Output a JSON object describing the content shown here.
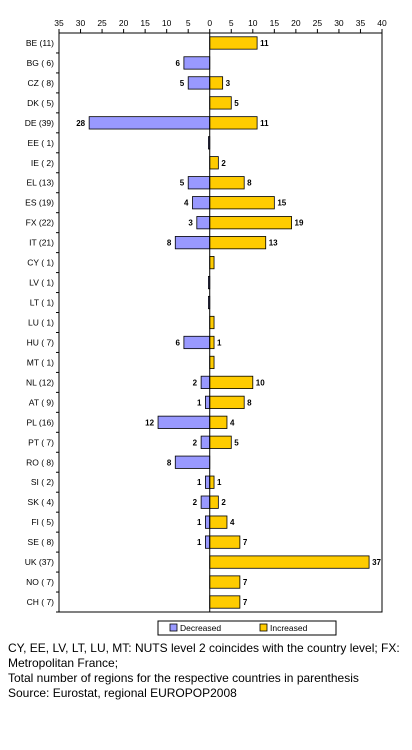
{
  "chart_data": {
    "type": "bar",
    "orientation": "horizontal",
    "title": "",
    "xlabel": "",
    "ylabel": "",
    "xlim": [
      -35,
      40
    ],
    "x_tick_values": [
      -35,
      -30,
      -25,
      -20,
      -15,
      -10,
      -5,
      0,
      5,
      10,
      15,
      20,
      25,
      30,
      35,
      40
    ],
    "x_tick_labels": [
      "35",
      "30",
      "25",
      "20",
      "15",
      "10",
      "5",
      "0",
      "5",
      "10",
      "15",
      "20",
      "25",
      "30",
      "35",
      "40"
    ],
    "grid": false,
    "legend_position": "bottom",
    "categories": [
      "BE (11)",
      "BG ( 6)",
      "CZ ( 8)",
      "DK ( 5)",
      "DE (39)",
      "EE ( 1)",
      "IE ( 2)",
      "EL (13)",
      "ES (19)",
      "FX (22)",
      "IT (21)",
      "CY ( 1)",
      "LV ( 1)",
      "LT ( 1)",
      "LU ( 1)",
      "HU ( 7)",
      "MT ( 1)",
      "NL (12)",
      "AT ( 9)",
      "PL (16)",
      "PT ( 7)",
      "RO ( 8)",
      "SI ( 2)",
      "SK ( 4)",
      "FI ( 5)",
      "SE ( 8)",
      "UK (37)",
      "NO ( 7)",
      "CH ( 7)"
    ],
    "series": [
      {
        "name": "Decreased",
        "color": "#9999ff",
        "values": [
          0,
          6,
          5,
          0,
          28,
          0.3,
          0,
          5,
          4,
          3,
          8,
          0,
          0.3,
          0.3,
          0,
          6,
          0,
          2,
          1,
          12,
          2,
          8,
          1,
          2,
          1,
          1,
          0,
          0,
          0
        ],
        "labels": [
          "",
          "6",
          "5",
          "",
          "28",
          "",
          "",
          "5",
          "4",
          "3",
          "8",
          "",
          "",
          "",
          "",
          "6",
          "",
          "2",
          "1",
          "12",
          "2",
          "8",
          "1",
          "2",
          "1",
          "1",
          "",
          "",
          ""
        ]
      },
      {
        "name": "Increased",
        "color": "#ffcc00",
        "values": [
          11,
          0,
          3,
          5,
          11,
          0,
          2,
          8,
          15,
          19,
          13,
          1,
          0,
          0,
          1,
          1,
          1,
          10,
          8,
          4,
          5,
          0,
          1,
          2,
          4,
          7,
          37,
          7,
          7
        ],
        "labels": [
          "11",
          "",
          "3",
          "5",
          "11",
          "",
          "2",
          "8",
          "15",
          "19",
          "13",
          "",
          "",
          "",
          "",
          "1",
          "",
          "10",
          "8",
          "4",
          "5",
          "",
          "1",
          "2",
          "4",
          "7",
          "37",
          "7",
          "7"
        ]
      }
    ]
  },
  "notes": {
    "line1": "CY, EE, LV, LT, LU, MT: NUTS level 2 coincides with the country level; FX: Metropolitan France;",
    "line2": "Total number of regions for the respective countries in parenthesis",
    "line3": "Source: Eurostat, regional EUROPOP2008"
  }
}
